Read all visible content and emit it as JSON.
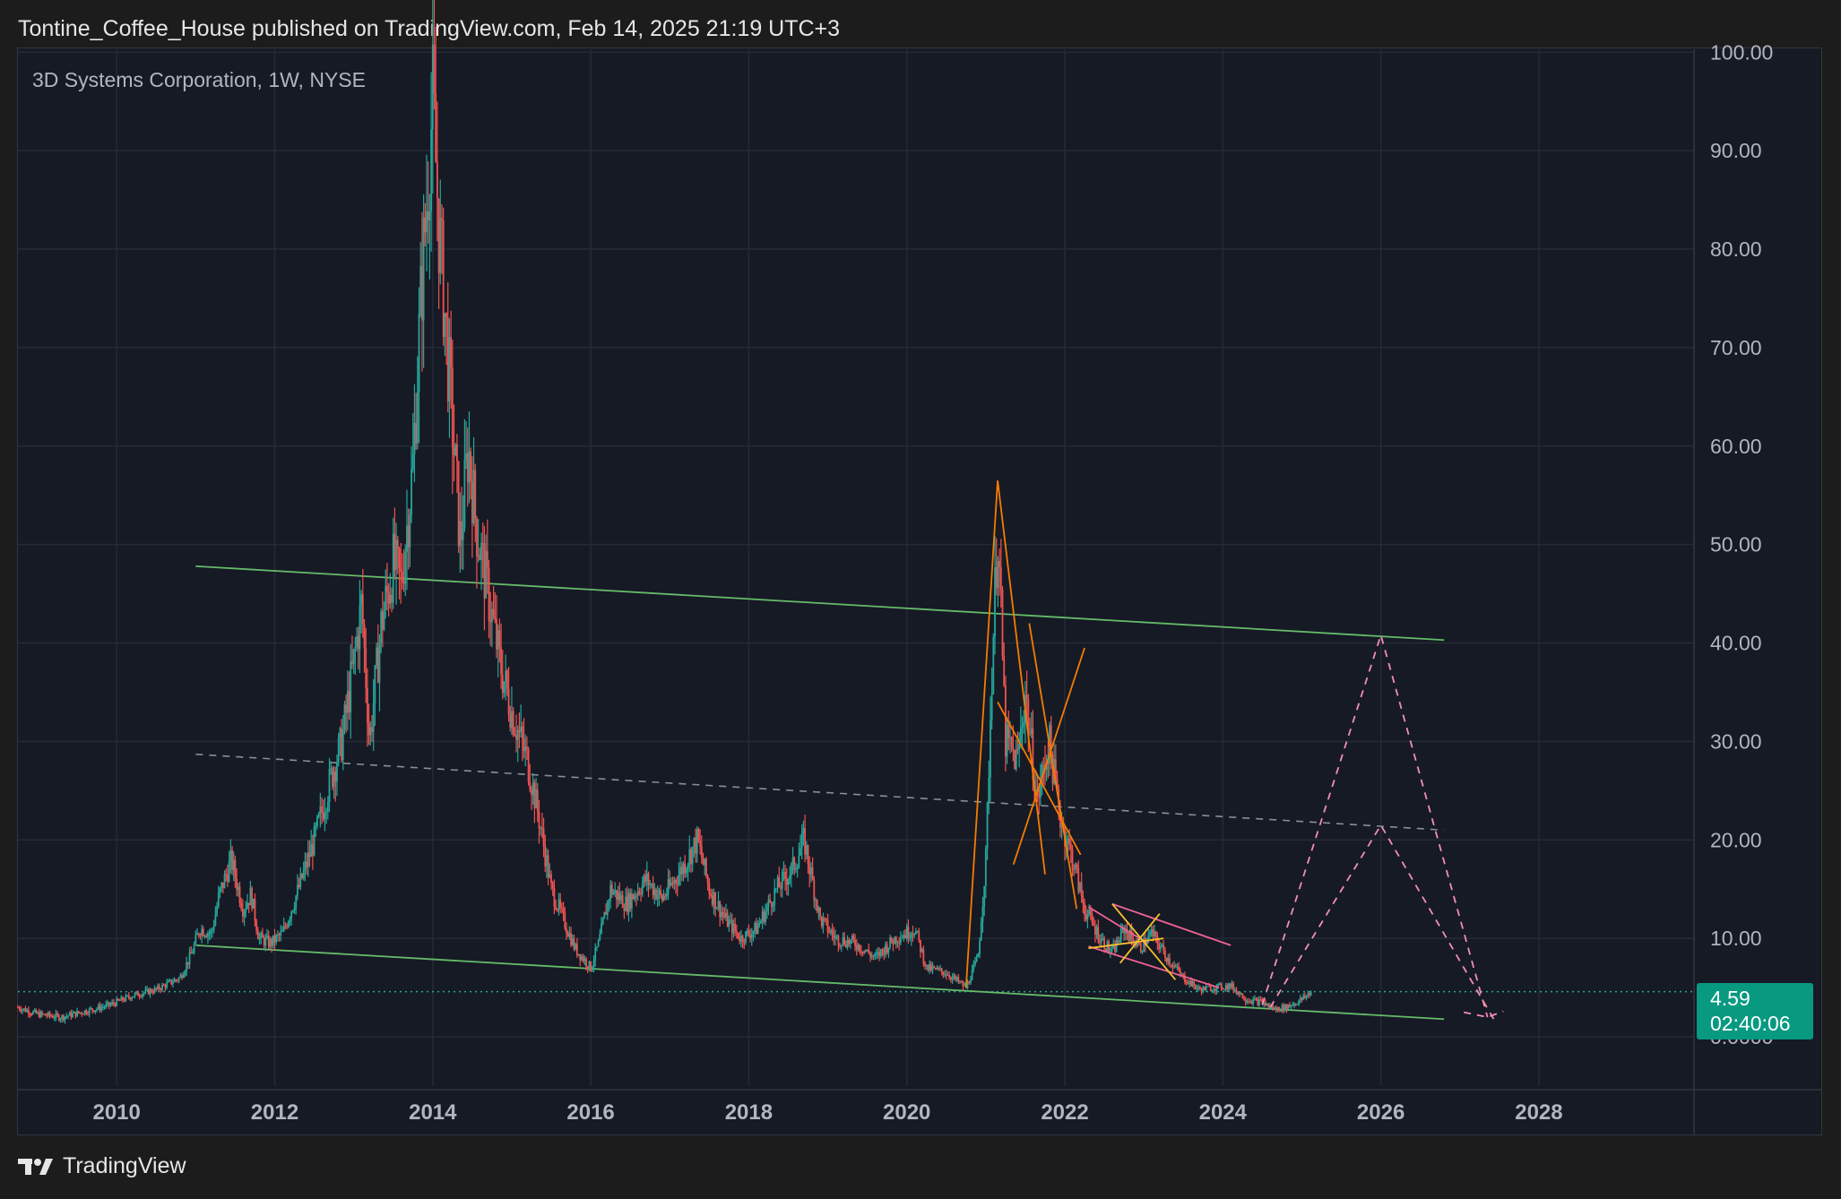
{
  "header": {
    "publish_text": "Tontine_Coffee_House published on TradingView.com, Feb 14, 2025 21:19 UTC+3"
  },
  "symbol": {
    "title": "3D Systems Corporation, 1W, NYSE"
  },
  "price_badge": {
    "price": "4.59",
    "countdown": "02:40:06"
  },
  "footer": {
    "brand": "TradingView",
    "logo_icon": "tradingview-logo-icon"
  },
  "colors": {
    "up": "#26a69a",
    "down": "#ef5350",
    "green_line": "#66bb6a",
    "orange": "#f57c00",
    "yellow": "#fbc02d",
    "pink": "#f06292",
    "projection": "#f48fb1",
    "gray_dashed": "#8a8e98",
    "grid": "#262a36",
    "badge": "#089981"
  },
  "chart_data": {
    "type": "candlestick",
    "x_range": [
      2008.75,
      2029.85
    ],
    "y_range": [
      -5.0,
      100.3
    ],
    "y_ticks": [
      "100.00",
      "90.00",
      "80.00",
      "70.00",
      "60.00",
      "50.00",
      "40.00",
      "30.00",
      "20.00",
      "10.00",
      "0.0000"
    ],
    "y_tick_values": [
      100,
      90,
      80,
      70,
      60,
      50,
      40,
      30,
      20,
      10,
      0
    ],
    "x_ticks": [
      "2010",
      "2012",
      "2014",
      "2016",
      "2018",
      "2020",
      "2022",
      "2024",
      "2026",
      "2028"
    ],
    "x_tick_values": [
      2010,
      2012,
      2014,
      2016,
      2018,
      2020,
      2022,
      2024,
      2026,
      2028
    ],
    "last_price": 4.59,
    "price_path": [
      [
        2008.75,
        3.0
      ],
      [
        2009.0,
        2.3
      ],
      [
        2009.3,
        2.0
      ],
      [
        2009.6,
        2.6
      ],
      [
        2009.9,
        3.2
      ],
      [
        2010.2,
        4.2
      ],
      [
        2010.5,
        4.8
      ],
      [
        2010.8,
        6.0
      ],
      [
        2010.95,
        8.5
      ],
      [
        2011.05,
        11.0
      ],
      [
        2011.2,
        10.5
      ],
      [
        2011.3,
        14.5
      ],
      [
        2011.45,
        18.0
      ],
      [
        2011.6,
        13.0
      ],
      [
        2011.7,
        14.5
      ],
      [
        2011.8,
        10.0
      ],
      [
        2011.95,
        9.5
      ],
      [
        2012.1,
        10.5
      ],
      [
        2012.3,
        15.0
      ],
      [
        2012.5,
        20.0
      ],
      [
        2012.7,
        26.0
      ],
      [
        2012.85,
        30.0
      ],
      [
        2013.0,
        38.0
      ],
      [
        2013.1,
        44.0
      ],
      [
        2013.2,
        30.0
      ],
      [
        2013.35,
        42.0
      ],
      [
        2013.5,
        48.0
      ],
      [
        2013.6,
        46.0
      ],
      [
        2013.75,
        58.0
      ],
      [
        2013.85,
        75.0
      ],
      [
        2014.0,
        95.0
      ],
      [
        2014.08,
        82.0
      ],
      [
        2014.2,
        68.0
      ],
      [
        2014.35,
        50.0
      ],
      [
        2014.45,
        60.0
      ],
      [
        2014.55,
        52.0
      ],
      [
        2014.7,
        45.0
      ],
      [
        2014.85,
        38.0
      ],
      [
        2015.0,
        33.0
      ],
      [
        2015.2,
        28.0
      ],
      [
        2015.35,
        22.0
      ],
      [
        2015.5,
        15.0
      ],
      [
        2015.65,
        12.0
      ],
      [
        2015.8,
        9.0
      ],
      [
        2016.0,
        7.0
      ],
      [
        2016.1,
        9.5
      ],
      [
        2016.25,
        15.0
      ],
      [
        2016.45,
        13.5
      ],
      [
        2016.7,
        16.0
      ],
      [
        2016.9,
        14.0
      ],
      [
        2017.15,
        17.0
      ],
      [
        2017.35,
        20.0
      ],
      [
        2017.5,
        15.0
      ],
      [
        2017.7,
        12.0
      ],
      [
        2017.9,
        10.0
      ],
      [
        2018.1,
        11.0
      ],
      [
        2018.35,
        15.0
      ],
      [
        2018.55,
        17.0
      ],
      [
        2018.7,
        20.0
      ],
      [
        2018.9,
        12.0
      ],
      [
        2019.1,
        10.0
      ],
      [
        2019.35,
        9.5
      ],
      [
        2019.6,
        8.0
      ],
      [
        2019.85,
        10.0
      ],
      [
        2020.1,
        11.0
      ],
      [
        2020.25,
        7.0
      ],
      [
        2020.5,
        6.5
      ],
      [
        2020.75,
        5.0
      ],
      [
        2020.9,
        8.0
      ],
      [
        2021.0,
        18.0
      ],
      [
        2021.08,
        38.0
      ],
      [
        2021.15,
        52.0
      ],
      [
        2021.25,
        30.0
      ],
      [
        2021.4,
        28.0
      ],
      [
        2021.5,
        35.0
      ],
      [
        2021.65,
        24.0
      ],
      [
        2021.8,
        30.0
      ],
      [
        2021.95,
        22.0
      ],
      [
        2022.1,
        18.0
      ],
      [
        2022.25,
        13.0
      ],
      [
        2022.45,
        10.0
      ],
      [
        2022.6,
        8.5
      ],
      [
        2022.75,
        11.0
      ],
      [
        2022.95,
        9.0
      ],
      [
        2023.1,
        10.5
      ],
      [
        2023.3,
        8.0
      ],
      [
        2023.5,
        6.0
      ],
      [
        2023.7,
        4.8
      ],
      [
        2023.9,
        5.0
      ],
      [
        2024.1,
        5.2
      ],
      [
        2024.3,
        3.8
      ],
      [
        2024.5,
        3.5
      ],
      [
        2024.65,
        2.8
      ],
      [
        2024.8,
        3.0
      ],
      [
        2025.0,
        3.8
      ],
      [
        2025.12,
        4.59
      ]
    ]
  },
  "drawings": {
    "trend_lines": [
      {
        "color_key": "green_line",
        "points": [
          [
            2011.0,
            47.8
          ],
          [
            2026.8,
            40.3
          ]
        ]
      },
      {
        "color_key": "green_line",
        "points": [
          [
            2011.0,
            9.3
          ],
          [
            2026.8,
            1.8
          ]
        ]
      }
    ],
    "dashed_lines": [
      {
        "color_key": "gray_dashed",
        "points": [
          [
            2011.0,
            28.7
          ],
          [
            2026.8,
            21.0
          ]
        ]
      }
    ],
    "orange_lines": [
      [
        [
          2020.75,
          5.0
        ],
        [
          2021.15,
          56.5
        ],
        [
          2021.75,
          16.5
        ]
      ],
      [
        [
          2021.15,
          34.0
        ],
        [
          2022.2,
          18.5
        ]
      ],
      [
        [
          2021.35,
          17.5
        ],
        [
          2022.25,
          39.5
        ]
      ],
      [
        [
          2021.55,
          42.0
        ],
        [
          2022.15,
          13.0
        ]
      ]
    ],
    "yellow_lines": [
      [
        [
          2022.3,
          9.0
        ],
        [
          2023.25,
          10.0
        ]
      ],
      [
        [
          2022.6,
          13.5
        ],
        [
          2023.4,
          5.8
        ]
      ],
      [
        [
          2022.7,
          7.5
        ],
        [
          2023.2,
          12.5
        ]
      ]
    ],
    "pink_lines": [
      [
        [
          2022.3,
          13.2
        ],
        [
          2023.05,
          9.5
        ]
      ],
      [
        [
          2022.3,
          9.2
        ],
        [
          2023.95,
          5.0
        ]
      ],
      [
        [
          2022.6,
          13.5
        ],
        [
          2024.1,
          9.3
        ]
      ]
    ],
    "projections": [
      [
        [
          2024.5,
          3.3
        ],
        [
          2026.0,
          40.8
        ],
        [
          2027.35,
          2.0
        ]
      ],
      [
        [
          2024.6,
          3.0
        ],
        [
          2026.0,
          21.5
        ],
        [
          2027.45,
          1.5
        ]
      ],
      [
        [
          2027.05,
          2.5
        ],
        [
          2027.35,
          2.0
        ],
        [
          2027.55,
          2.6
        ]
      ]
    ]
  }
}
